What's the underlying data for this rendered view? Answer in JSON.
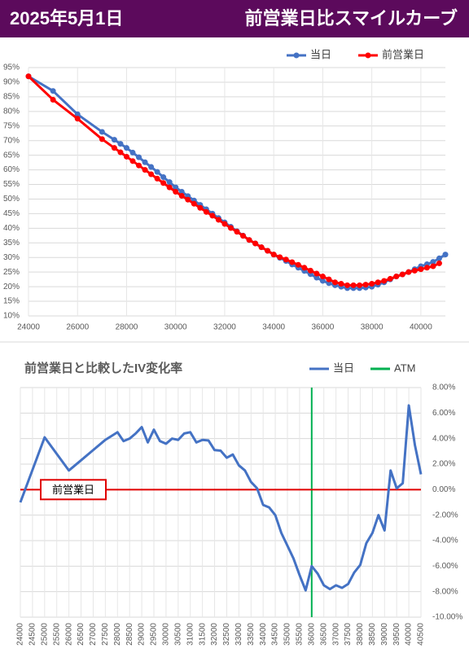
{
  "header": {
    "date": "2025年5月1日",
    "title": "前営業日比スマイルカーブ"
  },
  "chart_data": [
    {
      "type": "line",
      "x": [
        24000,
        25000,
        26000,
        27000,
        27500,
        27750,
        28000,
        28250,
        28500,
        28750,
        29000,
        29250,
        29500,
        29750,
        30000,
        30250,
        30500,
        30750,
        31000,
        31250,
        31500,
        31750,
        32000,
        32250,
        32500,
        32750,
        33000,
        33250,
        33500,
        33750,
        34000,
        34250,
        34500,
        34750,
        35000,
        35250,
        35500,
        35750,
        36000,
        36250,
        36500,
        36750,
        37000,
        37250,
        37500,
        37750,
        38000,
        38250,
        38500,
        38750,
        39000,
        39250,
        39500,
        39750,
        40000,
        40250,
        40500,
        40750,
        41000
      ],
      "series": [
        {
          "name": "当日",
          "color": "#4472c4",
          "values": [
            92,
            87,
            79,
            73,
            70.3,
            68.9,
            67.5,
            65.9,
            64.3,
            62.6,
            61,
            59.3,
            57.5,
            55.8,
            54,
            52.5,
            51,
            49.5,
            48,
            46.5,
            45,
            43.5,
            42,
            40.5,
            39,
            37.5,
            36,
            34.8,
            33.5,
            32.3,
            31,
            29.9,
            28.8,
            27.6,
            26.5,
            25.4,
            24.3,
            23.1,
            22,
            21.2,
            20.5,
            20,
            19.5,
            19.5,
            19.5,
            19.7,
            20,
            20.7,
            21.5,
            22.5,
            23.5,
            24.2,
            25,
            26,
            27,
            27.7,
            28.5,
            29.7,
            31
          ]
        },
        {
          "name": "前営業日",
          "color": "#ff0000",
          "values": [
            92,
            84,
            77.5,
            70.5,
            67.5,
            66,
            64.5,
            63,
            61.5,
            60,
            58.5,
            57,
            55.5,
            54,
            52.5,
            51.1,
            49.8,
            48.4,
            47,
            45.6,
            44.3,
            42.9,
            41.5,
            40.1,
            38.8,
            37.4,
            36,
            34.8,
            33.5,
            32.3,
            31,
            30.1,
            29.3,
            28.4,
            27.5,
            26.5,
            25.5,
            24.5,
            23.5,
            22.5,
            21.5,
            21,
            20.5,
            20.5,
            20.5,
            20.7,
            21,
            21.5,
            22,
            22.7,
            23.5,
            24.2,
            25,
            25.5,
            26,
            26.5,
            27,
            28,
            null
          ]
        }
      ],
      "xlim": [
        24000,
        41000
      ],
      "xticks": [
        24000,
        26000,
        28000,
        30000,
        32000,
        34000,
        36000,
        38000,
        40000
      ],
      "ylim": [
        10,
        95
      ],
      "yticks": [
        {
          "value": 10,
          "label": "10%"
        },
        {
          "value": 15,
          "label": "15%"
        },
        {
          "value": 20,
          "label": "20%"
        },
        {
          "value": 25,
          "label": "25%"
        },
        {
          "value": 30,
          "label": "30%"
        },
        {
          "value": 35,
          "label": "35%"
        },
        {
          "value": 40,
          "label": "40%"
        },
        {
          "value": 45,
          "label": "45%"
        },
        {
          "value": 50,
          "label": "50%"
        },
        {
          "value": 55,
          "label": "55%"
        },
        {
          "value": 60,
          "label": "60%"
        },
        {
          "value": 65,
          "label": "65%"
        },
        {
          "value": 70,
          "label": "70%"
        },
        {
          "value": 75,
          "label": "75%"
        },
        {
          "value": 80,
          "label": "80%"
        },
        {
          "value": 85,
          "label": "85%"
        },
        {
          "value": 90,
          "label": "90%"
        },
        {
          "value": 95,
          "label": "95%"
        }
      ],
      "grid": true,
      "legend": "top-right",
      "markers": true
    },
    {
      "type": "line",
      "title": "前営業日と比較したIV変化率",
      "x": [
        24000,
        25000,
        26000,
        26500,
        27000,
        27500,
        28000,
        28250,
        28500,
        28750,
        29000,
        29250,
        29500,
        29750,
        30000,
        30250,
        30500,
        30750,
        31000,
        31250,
        31500,
        31750,
        32000,
        32250,
        32500,
        32750,
        33000,
        33250,
        33500,
        33750,
        34000,
        34250,
        34500,
        34750,
        35000,
        35250,
        35500,
        35750,
        36000,
        36250,
        36500,
        36750,
        37000,
        37250,
        37500,
        37750,
        38000,
        38250,
        38500,
        38750,
        39000,
        39250,
        39500,
        39750,
        40000,
        40250,
        40500
      ],
      "series": [
        {
          "name": "当日",
          "color": "#4472c4",
          "axis": "y2",
          "values": [
            -1.0,
            4.1,
            1.5,
            2.3,
            3.1,
            3.9,
            4.5,
            3.8,
            4.0,
            4.4,
            4.9,
            3.7,
            4.7,
            3.8,
            3.6,
            4.0,
            3.9,
            4.4,
            4.5,
            3.7,
            3.9,
            3.85,
            3.1,
            3.05,
            2.5,
            2.75,
            1.9,
            1.5,
            0.6,
            0.1,
            -1.2,
            -1.4,
            -2.0,
            -3.4,
            -4.4,
            -5.4,
            -6.7,
            -7.9,
            -6.0,
            -6.6,
            -7.5,
            -7.8,
            -7.5,
            -7.7,
            -7.4,
            -6.5,
            -5.9,
            -4.2,
            -3.4,
            -2.0,
            -3.2,
            1.5,
            0.1,
            0.5,
            6.6,
            3.5,
            1.2
          ]
        }
      ],
      "reference_lines": [
        {
          "name": "ATM",
          "x": 36000,
          "color": "#00b050"
        },
        {
          "label": "前営業日",
          "y": 0,
          "color": "#e00000"
        }
      ],
      "xlim": [
        24000,
        40500
      ],
      "xticks": [
        24000,
        24500,
        25000,
        25500,
        26000,
        26500,
        27000,
        27500,
        28000,
        28500,
        29000,
        29500,
        30000,
        30500,
        31000,
        31500,
        32000,
        32500,
        33000,
        33500,
        34000,
        34500,
        35000,
        35500,
        36000,
        36500,
        37000,
        37500,
        38000,
        38500,
        39000,
        39500,
        40000,
        40500
      ],
      "y2lim": [
        -10,
        8
      ],
      "y2ticks": [
        {
          "value": -10,
          "label": "-10.00%"
        },
        {
          "value": -8,
          "label": "-8.00%"
        },
        {
          "value": -6,
          "label": "-6.00%"
        },
        {
          "value": -4,
          "label": "-4.00%"
        },
        {
          "value": -2,
          "label": "-2.00%"
        },
        {
          "value": 0,
          "label": "0.00%"
        },
        {
          "value": 2,
          "label": "2.00%"
        },
        {
          "value": 4,
          "label": "4.00%"
        },
        {
          "value": 6,
          "label": "6.00%"
        },
        {
          "value": 8,
          "label": "8.00%"
        }
      ],
      "grid": true,
      "legend": "top-right",
      "markers": false
    }
  ]
}
